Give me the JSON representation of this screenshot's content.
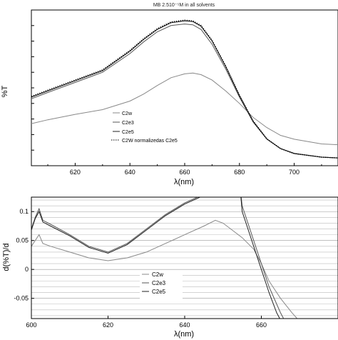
{
  "chart_data": [
    {
      "type": "line",
      "title": "MB 2.510⁻⁵M in all solvents",
      "xlabel": "λ(nm)",
      "ylabel": "%T",
      "xlim": [
        604,
        716
      ],
      "ylim": [
        0,
        1
      ],
      "xticks": [
        "620",
        "640",
        "660",
        "680",
        "700"
      ],
      "xtick_values": [
        620,
        640,
        660,
        680,
        700
      ],
      "grid": false,
      "legend_position": "center-left",
      "series": [
        {
          "name": "C2w",
          "color": "#888888",
          "style": "solid",
          "x": [
            604,
            610,
            620,
            630,
            640,
            645,
            650,
            655,
            660,
            663,
            666,
            670,
            675,
            680,
            685,
            690,
            695,
            700,
            710,
            716
          ],
          "y": [
            0.27,
            0.295,
            0.33,
            0.36,
            0.415,
            0.46,
            0.515,
            0.565,
            0.59,
            0.595,
            0.585,
            0.55,
            0.48,
            0.4,
            0.31,
            0.245,
            0.195,
            0.17,
            0.14,
            0.135
          ]
        },
        {
          "name": "C2e3",
          "color": "#555555",
          "style": "solid",
          "x": [
            604,
            610,
            620,
            630,
            640,
            645,
            650,
            655,
            660,
            663,
            666,
            670,
            675,
            680,
            685,
            690,
            695,
            700,
            710,
            716
          ],
          "y": [
            0.43,
            0.47,
            0.535,
            0.6,
            0.72,
            0.795,
            0.86,
            0.9,
            0.91,
            0.905,
            0.875,
            0.78,
            0.62,
            0.44,
            0.28,
            0.17,
            0.11,
            0.08,
            0.055,
            0.05
          ]
        },
        {
          "name": "C2e5",
          "color": "#222222",
          "style": "solid",
          "x": [
            604,
            610,
            620,
            630,
            640,
            645,
            650,
            655,
            660,
            663,
            666,
            670,
            675,
            680,
            685,
            690,
            695,
            700,
            710,
            716
          ],
          "y": [
            0.44,
            0.48,
            0.545,
            0.61,
            0.735,
            0.81,
            0.875,
            0.918,
            0.93,
            0.925,
            0.895,
            0.8,
            0.635,
            0.45,
            0.285,
            0.172,
            0.11,
            0.078,
            0.055,
            0.05
          ]
        },
        {
          "name": "C2W normalizedas C2e5",
          "color": "#000000",
          "style": "dotted-marker",
          "x": [
            604,
            610,
            620,
            630,
            640,
            645,
            650,
            655,
            660,
            663,
            666,
            670,
            675,
            680,
            685,
            690,
            695,
            700,
            710,
            716
          ],
          "y": [
            0.445,
            0.485,
            0.55,
            0.615,
            0.74,
            0.815,
            0.88,
            0.923,
            0.935,
            0.93,
            0.9,
            0.805,
            0.64,
            0.452,
            0.287,
            0.173,
            0.11,
            0.078,
            0.055,
            0.05
          ]
        }
      ]
    },
    {
      "type": "line",
      "xlabel": "λ(nm)",
      "ylabel": "d(%T)/d",
      "xlim": [
        600,
        680
      ],
      "ylim": [
        -0.085,
        0.125
      ],
      "xticks": [
        "600",
        "620",
        "640",
        "660"
      ],
      "xtick_values": [
        600,
        620,
        640,
        660
      ],
      "yticks": [
        "-0.05",
        "0",
        "0.05",
        "0.1"
      ],
      "ytick_values": [
        -0.05,
        0,
        0.05,
        0.1
      ],
      "grid": true,
      "legend_position": "bottom-right",
      "series": [
        {
          "name": "C2w",
          "color": "#888888",
          "x": [
            600,
            601,
            602,
            603,
            605,
            610,
            615,
            620,
            625,
            630,
            635,
            640,
            645,
            648,
            650,
            652,
            655,
            658,
            660,
            662,
            665,
            668,
            670
          ],
          "y": [
            0.04,
            0.05,
            0.06,
            0.045,
            0.04,
            0.03,
            0.02,
            0.015,
            0.02,
            0.03,
            0.045,
            0.06,
            0.075,
            0.085,
            0.08,
            0.07,
            0.055,
            0.035,
            0.01,
            -0.02,
            -0.05,
            -0.075,
            -0.09
          ]
        },
        {
          "name": "C2e3",
          "color": "#555555",
          "x": [
            600,
            601,
            602,
            603,
            605,
            610,
            615,
            620,
            625,
            630,
            635,
            640,
            645,
            648,
            654.5,
            655,
            657,
            660,
            662,
            665,
            667
          ],
          "y": [
            0.07,
            0.09,
            0.105,
            0.085,
            0.078,
            0.06,
            0.04,
            0.03,
            0.045,
            0.07,
            0.095,
            0.115,
            0.13,
            0.14,
            0.14,
            0.11,
            0.07,
            0.01,
            -0.03,
            -0.075,
            -0.1
          ]
        },
        {
          "name": "C2e5",
          "color": "#222222",
          "x": [
            600,
            601,
            602,
            603,
            605,
            610,
            615,
            620,
            625,
            630,
            635,
            640,
            645,
            648,
            654.5,
            655,
            657,
            660,
            662,
            664,
            666
          ],
          "y": [
            0.068,
            0.088,
            0.1,
            0.082,
            0.075,
            0.058,
            0.038,
            0.028,
            0.043,
            0.068,
            0.093,
            0.113,
            0.128,
            0.138,
            0.138,
            0.1,
            0.06,
            0.0,
            -0.04,
            -0.075,
            -0.1
          ]
        }
      ]
    }
  ]
}
